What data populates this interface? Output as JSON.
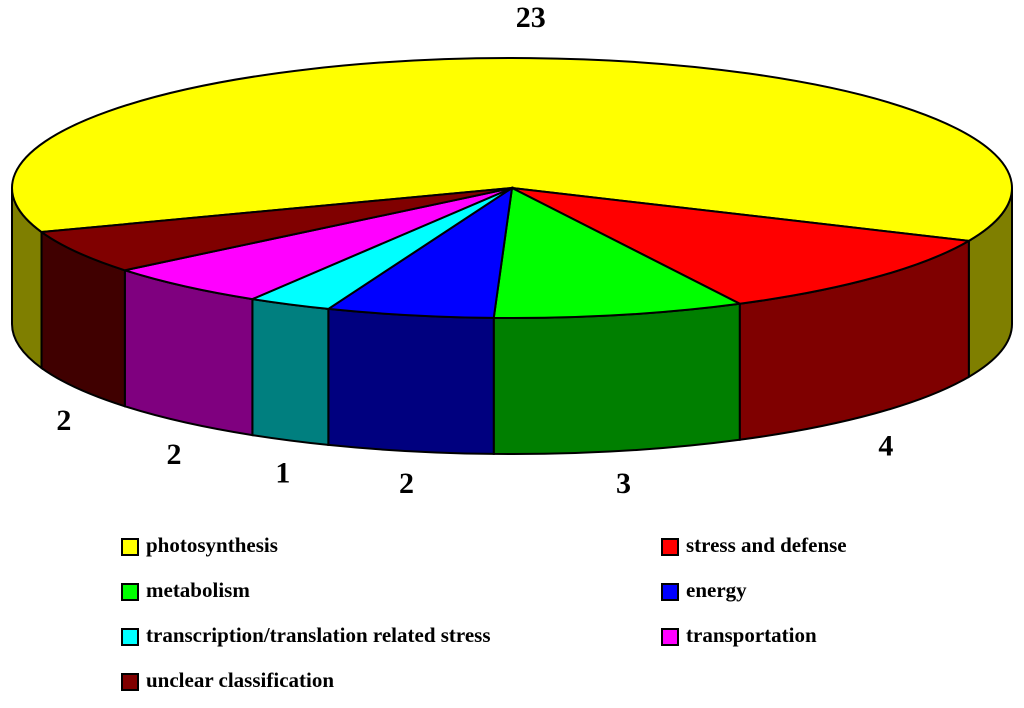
{
  "chart_data": {
    "type": "pie3d",
    "categories": [
      "photosynthesis",
      " stress and defense",
      "metabolism",
      "energy",
      "transcription/translation related stress",
      "transportation",
      "unclear classification"
    ],
    "values": [
      23,
      4,
      3,
      2,
      1,
      2,
      2
    ],
    "colors": [
      "#ffff00",
      "#ff0000",
      "#00ff00",
      "#0000ff",
      "#00ffff",
      "#ff00ff",
      "#800000"
    ],
    "legend": "bottom"
  }
}
